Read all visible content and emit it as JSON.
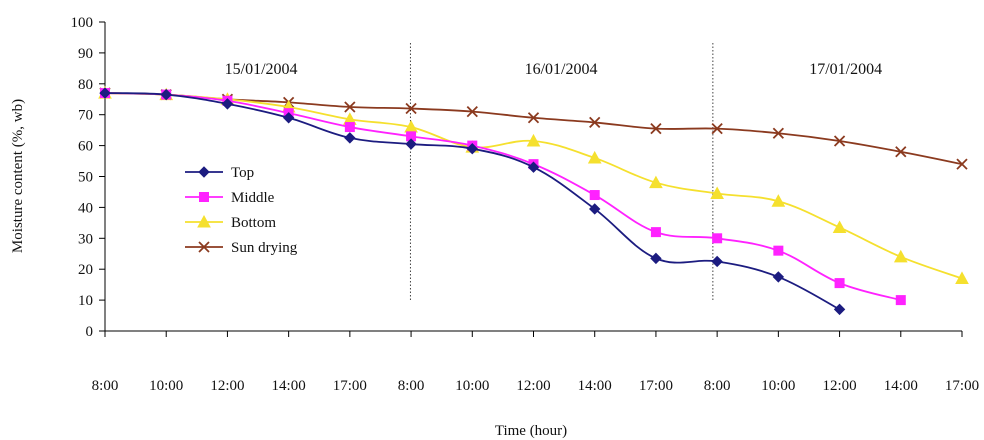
{
  "chart_data": {
    "type": "line",
    "xlabel": "Time (hour)",
    "ylabel": "Moisture content (%, wb)",
    "ylim": [
      0,
      100
    ],
    "yticks": [
      "0",
      "10",
      "20",
      "30",
      "40",
      "50",
      "60",
      "70",
      "80",
      "90",
      "100"
    ],
    "categories": [
      "8:00",
      "10:00",
      "12:00",
      "14:00",
      "17:00",
      "8:00",
      "10:00",
      "12:00",
      "14:00",
      "17:00",
      "8:00",
      "10:00",
      "12:00",
      "14:00",
      "17:00"
    ],
    "periods": [
      {
        "label": "15/01/2004",
        "start_index": 0,
        "end_index": 5
      },
      {
        "label": "16/01/2004",
        "start_index": 5,
        "end_index": 10
      },
      {
        "label": "17/01/2004",
        "start_index": 10,
        "end_index": 14
      }
    ],
    "grid": false,
    "legend_position": "left",
    "series": [
      {
        "name": "Top",
        "color": "#1c1c80",
        "marker": "diamond",
        "values": [
          77,
          76.5,
          73.5,
          69,
          62.5,
          60.5,
          59,
          53,
          39.5,
          23.5,
          22.5,
          17.5,
          7,
          null,
          null
        ]
      },
      {
        "name": "Middle",
        "color": "#ff22ff",
        "marker": "square",
        "values": [
          77,
          76.5,
          74.5,
          70.5,
          66,
          63,
          60,
          54,
          44,
          32,
          30,
          26,
          15.5,
          10,
          null
        ]
      },
      {
        "name": "Bottom",
        "color": "#f5e02e",
        "marker": "triangle",
        "values": [
          77,
          76.5,
          75,
          72.5,
          68.5,
          66,
          59.5,
          61.5,
          56,
          48,
          44.5,
          42,
          33.5,
          24,
          17
        ]
      },
      {
        "name": "Sun drying",
        "color": "#8b3a1f",
        "marker": "x",
        "values": [
          77,
          76.5,
          75,
          74,
          72.5,
          72,
          71,
          69,
          67.5,
          65.5,
          65.5,
          64,
          61.5,
          58,
          54
        ]
      }
    ]
  }
}
